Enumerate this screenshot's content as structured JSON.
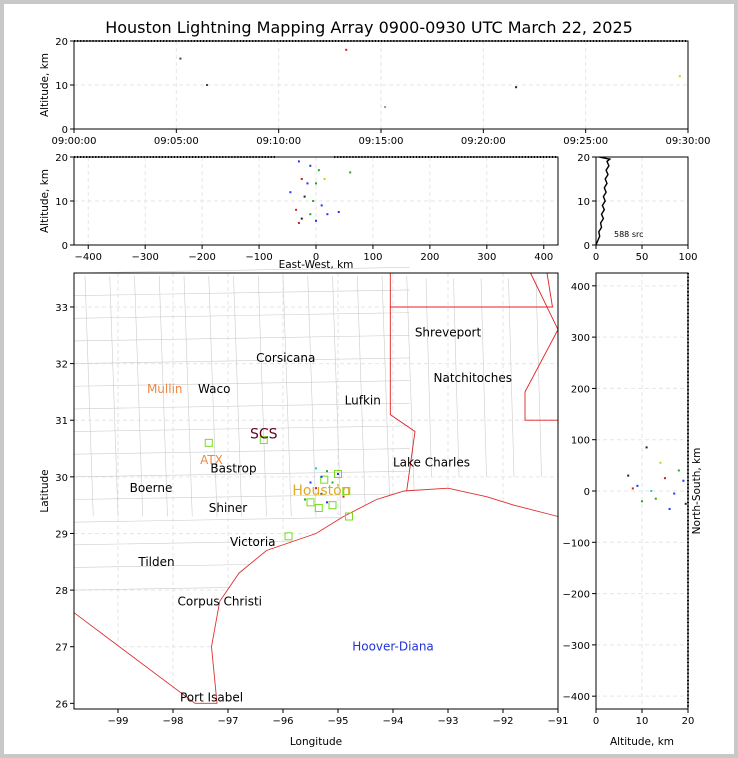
{
  "title": "Houston Lightning Mapping Array 0900-0930 UTC March 22, 2025",
  "chart_data": [
    {
      "id": "alt_time",
      "type": "scatter",
      "ylabel": "Altitude, km",
      "xlabel": "",
      "xlim": [
        0,
        30
      ],
      "ylim": [
        0,
        20
      ],
      "xticks": [
        0,
        5,
        10,
        15,
        20,
        25,
        30
      ],
      "xticklabels": [
        "09:00:00",
        "09:05:00",
        "09:10:00",
        "09:15:00",
        "09:20:00",
        "09:25:00",
        "09:30:00"
      ],
      "yticks": [
        0,
        10,
        20
      ],
      "points": [
        {
          "x": 5.2,
          "y": 16,
          "color": "#444444"
        },
        {
          "x": 6.5,
          "y": 10,
          "color": "#444444"
        },
        {
          "x": 13.3,
          "y": 18,
          "color": "#cc2222"
        },
        {
          "x": 15.2,
          "y": 5,
          "color": "#999999"
        },
        {
          "x": 21.6,
          "y": 9.5,
          "color": "#222222"
        },
        {
          "x": 29.6,
          "y": 12,
          "color": "#cccc22"
        }
      ]
    },
    {
      "id": "alt_ew",
      "type": "scatter",
      "ylabel": "Altitude, km",
      "xlabel": "East-West, km",
      "xlim": [
        -425,
        425
      ],
      "ylim": [
        0,
        20
      ],
      "xticks": [
        -400,
        -300,
        -200,
        -100,
        0,
        100,
        200,
        300,
        400
      ],
      "yticks": [
        0,
        10,
        20
      ],
      "points": [
        {
          "x": -30,
          "y": 19,
          "color": "#2233ff"
        },
        {
          "x": -10,
          "y": 18,
          "color": "#2233ff"
        },
        {
          "x": 5,
          "y": 17,
          "color": "#22aa22"
        },
        {
          "x": -25,
          "y": 15,
          "color": "#cc2222"
        },
        {
          "x": -15,
          "y": 14,
          "color": "#2233ff"
        },
        {
          "x": 0,
          "y": 14,
          "color": "#22aa22"
        },
        {
          "x": 15,
          "y": 15,
          "color": "#cccc22"
        },
        {
          "x": -45,
          "y": 12,
          "color": "#2233ff"
        },
        {
          "x": -20,
          "y": 11,
          "color": "#222222"
        },
        {
          "x": -5,
          "y": 10,
          "color": "#22aa22"
        },
        {
          "x": 10,
          "y": 9,
          "color": "#2233ff"
        },
        {
          "x": -35,
          "y": 8,
          "color": "#cc2222"
        },
        {
          "x": -10,
          "y": 7,
          "color": "#22aa22"
        },
        {
          "x": 20,
          "y": 7,
          "color": "#2233ff"
        },
        {
          "x": -25,
          "y": 6,
          "color": "#222222"
        },
        {
          "x": 0,
          "y": 5.5,
          "color": "#2233ff"
        },
        {
          "x": -30,
          "y": 5,
          "color": "#cc2222"
        },
        {
          "x": 40,
          "y": 7.5,
          "color": "#2233ff"
        },
        {
          "x": 60,
          "y": 16.5,
          "color": "#22aa22"
        }
      ]
    },
    {
      "id": "alt_hist",
      "type": "line",
      "xlim": [
        0,
        100
      ],
      "ylim": [
        0,
        20
      ],
      "xticks": [
        0,
        50,
        100
      ],
      "yticks": [
        0,
        10,
        20
      ],
      "annotation": "588 src",
      "profile": [
        {
          "x": 2,
          "y": 1
        },
        {
          "x": 4,
          "y": 2
        },
        {
          "x": 3,
          "y": 3
        },
        {
          "x": 6,
          "y": 4
        },
        {
          "x": 5,
          "y": 5
        },
        {
          "x": 8,
          "y": 6
        },
        {
          "x": 6,
          "y": 7
        },
        {
          "x": 9,
          "y": 8
        },
        {
          "x": 7,
          "y": 9
        },
        {
          "x": 10,
          "y": 10
        },
        {
          "x": 8,
          "y": 11
        },
        {
          "x": 11,
          "y": 12
        },
        {
          "x": 9,
          "y": 13
        },
        {
          "x": 12,
          "y": 14
        },
        {
          "x": 10,
          "y": 15
        },
        {
          "x": 13,
          "y": 16
        },
        {
          "x": 11,
          "y": 17
        },
        {
          "x": 14,
          "y": 18
        },
        {
          "x": 12,
          "y": 19
        },
        {
          "x": 15,
          "y": 19.5
        },
        {
          "x": 3,
          "y": 20
        }
      ]
    },
    {
      "id": "plan_view",
      "type": "scatter",
      "xlabel": "Longitude",
      "ylabel": "Latitude",
      "xlim": [
        -99.8,
        -91.0
      ],
      "ylim": [
        25.9,
        33.6
      ],
      "xticks": [
        -99,
        -98,
        -97,
        -96,
        -95,
        -94,
        -93,
        -92,
        -91
      ],
      "yticks": [
        26,
        27,
        28,
        29,
        30,
        31,
        32,
        33
      ],
      "cities": [
        {
          "name": "Shreveport",
          "lon": -93.0,
          "lat": 32.55,
          "color": "#000000"
        },
        {
          "name": "Corsicana",
          "lon": -95.95,
          "lat": 32.1,
          "color": "#000000"
        },
        {
          "name": "Natchitoches",
          "lon": -92.55,
          "lat": 31.75,
          "color": "#000000"
        },
        {
          "name": "Mullin",
          "lon": -98.15,
          "lat": 31.55,
          "color": "#ee8844"
        },
        {
          "name": "Waco",
          "lon": -97.25,
          "lat": 31.55,
          "color": "#000000"
        },
        {
          "name": "Lufkin",
          "lon": -94.55,
          "lat": 31.35,
          "color": "#000000"
        },
        {
          "name": "SCS",
          "lon": -96.35,
          "lat": 30.75,
          "color": "#660022"
        },
        {
          "name": "ATX",
          "lon": -97.3,
          "lat": 30.3,
          "color": "#ee8844"
        },
        {
          "name": "Lake Charles",
          "lon": -93.3,
          "lat": 30.25,
          "color": "#000000"
        },
        {
          "name": "Bastrop",
          "lon": -96.9,
          "lat": 30.15,
          "color": "#000000"
        },
        {
          "name": "Boerne",
          "lon": -98.4,
          "lat": 29.8,
          "color": "#000000"
        },
        {
          "name": "Houston",
          "lon": -95.3,
          "lat": 29.75,
          "color": "#ddaa22"
        },
        {
          "name": "Shiner",
          "lon": -97.0,
          "lat": 29.45,
          "color": "#000000"
        },
        {
          "name": "Victoria",
          "lon": -96.55,
          "lat": 28.85,
          "color": "#000000"
        },
        {
          "name": "Tilden",
          "lon": -98.3,
          "lat": 28.5,
          "color": "#000000"
        },
        {
          "name": "Corpus Christi",
          "lon": -97.15,
          "lat": 27.8,
          "color": "#000000"
        },
        {
          "name": "Hoover-Diana",
          "lon": -94.0,
          "lat": 27.0,
          "color": "#2233dd"
        },
        {
          "name": "Port Isabel",
          "lon": -97.3,
          "lat": 26.1,
          "color": "#000000"
        }
      ],
      "stations": [
        {
          "lon": -97.35,
          "lat": 30.6
        },
        {
          "lon": -96.35,
          "lat": 30.65
        },
        {
          "lon": -95.0,
          "lat": 30.05
        },
        {
          "lon": -95.25,
          "lat": 29.95
        },
        {
          "lon": -95.5,
          "lat": 29.55
        },
        {
          "lon": -95.35,
          "lat": 29.45
        },
        {
          "lon": -95.1,
          "lat": 29.5
        },
        {
          "lon": -94.85,
          "lat": 29.75
        },
        {
          "lon": -94.8,
          "lat": 29.3
        },
        {
          "lon": -95.9,
          "lat": 28.95
        }
      ],
      "points": [
        {
          "lon": -95.3,
          "lat": 30.0,
          "color": "#2233ff"
        },
        {
          "lon": -95.2,
          "lat": 30.1,
          "color": "#22aa22"
        },
        {
          "lon": -95.4,
          "lat": 29.8,
          "color": "#cc2222"
        },
        {
          "lon": -95.1,
          "lat": 29.9,
          "color": "#22aa22"
        },
        {
          "lon": -95.5,
          "lat": 29.9,
          "color": "#2233ff"
        },
        {
          "lon": -95.0,
          "lat": 29.85,
          "color": "#cccc22"
        },
        {
          "lon": -95.3,
          "lat": 29.7,
          "color": "#222222"
        },
        {
          "lon": -95.6,
          "lat": 29.6,
          "color": "#22aa22"
        },
        {
          "lon": -95.2,
          "lat": 29.55,
          "color": "#2233ff"
        },
        {
          "lon": -94.9,
          "lat": 29.65,
          "color": "#cc2222"
        },
        {
          "lon": -95.4,
          "lat": 30.15,
          "color": "#22cccc"
        },
        {
          "lon": -95.0,
          "lat": 30.05,
          "color": "#2233ff"
        }
      ]
    },
    {
      "id": "ns_alt",
      "type": "scatter",
      "xlabel": "Altitude, km",
      "ylabel": "North-South, km",
      "xlim": [
        0,
        20
      ],
      "ylim": [
        -425,
        425
      ],
      "xticks": [
        0,
        10,
        20
      ],
      "yticks": [
        -400,
        -300,
        -200,
        -100,
        0,
        100,
        200,
        300,
        400
      ],
      "points": [
        {
          "x": 7,
          "y": 30,
          "color": "#222222"
        },
        {
          "x": 9,
          "y": 10,
          "color": "#2233ff"
        },
        {
          "x": 11,
          "y": 85,
          "color": "#222222"
        },
        {
          "x": 13,
          "y": -15,
          "color": "#22aa22"
        },
        {
          "x": 15,
          "y": 25,
          "color": "#cc2222"
        },
        {
          "x": 17,
          "y": -5,
          "color": "#2233ff"
        },
        {
          "x": 18,
          "y": 40,
          "color": "#22aa22"
        },
        {
          "x": 19,
          "y": 20,
          "color": "#2233ff"
        },
        {
          "x": 16,
          "y": -35,
          "color": "#2233ff"
        },
        {
          "x": 10,
          "y": -20,
          "color": "#22aa22"
        },
        {
          "x": 8,
          "y": 5,
          "color": "#cc2222"
        },
        {
          "x": 14,
          "y": 55,
          "color": "#cccc22"
        },
        {
          "x": 19.5,
          "y": -25,
          "color": "#222222"
        },
        {
          "x": 12,
          "y": 0,
          "color": "#22cccc"
        }
      ]
    }
  ]
}
